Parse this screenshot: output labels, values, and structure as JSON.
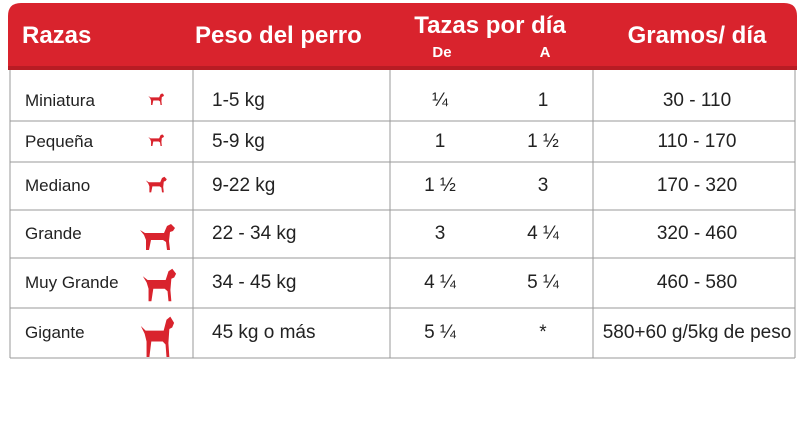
{
  "header": {
    "razas": "Razas",
    "peso": "Peso del perro",
    "tazas": "Tazas por día",
    "de": "De",
    "a": "A",
    "gramos": "Gramos/ día"
  },
  "table": {
    "rows": [
      [
        "Miniatura",
        "1-5 kg",
        "¼",
        "1",
        "30 - 110"
      ],
      [
        "Pequeña",
        "5-9 kg",
        "1",
        "1 ½",
        "110 - 170"
      ],
      [
        "Mediano",
        "9-22 kg",
        "1 ½",
        "3",
        "170 - 320"
      ],
      [
        "Grande",
        "22 - 34 kg",
        "3",
        "4 ¼",
        "320 - 460"
      ],
      [
        "Muy Grande",
        "34 - 45 kg",
        "4 ¼",
        "5 ¼",
        "460 - 580"
      ],
      [
        "Gigante",
        "45 kg o más",
        "5 ¼",
        "*",
        "580+60 g/5kg de peso"
      ]
    ]
  }
}
